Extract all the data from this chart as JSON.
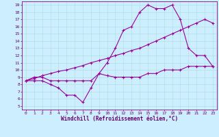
{
  "xlabel": "Windchill (Refroidissement éolien,°C)",
  "background_color": "#cceeff",
  "line_color": "#990099",
  "xlim": [
    -0.5,
    23.5
  ],
  "ylim": [
    4.5,
    19.5
  ],
  "yticks": [
    5,
    6,
    7,
    8,
    9,
    10,
    11,
    12,
    13,
    14,
    15,
    16,
    17,
    18,
    19
  ],
  "xticks": [
    0,
    1,
    2,
    3,
    4,
    5,
    6,
    7,
    8,
    9,
    10,
    11,
    12,
    13,
    14,
    15,
    16,
    17,
    18,
    19,
    20,
    21,
    22,
    23
  ],
  "line1_x": [
    0,
    1,
    2,
    3,
    4,
    5,
    6,
    7,
    8,
    9,
    10,
    11,
    12,
    13,
    14,
    15,
    16,
    17,
    18,
    19,
    20,
    21,
    22,
    23
  ],
  "line1_y": [
    8.5,
    9.0,
    9.0,
    8.5,
    8.5,
    8.5,
    8.5,
    8.5,
    8.5,
    9.5,
    11.0,
    13.0,
    15.5,
    16.0,
    18.0,
    19.0,
    18.5,
    18.5,
    19.0,
    17.0,
    13.0,
    12.0,
    12.0,
    10.5
  ],
  "line2_x": [
    0,
    1,
    2,
    3,
    4,
    5,
    6,
    7,
    8,
    9,
    10,
    11,
    12,
    13,
    14,
    15,
    16,
    17,
    18,
    19,
    20,
    21,
    22,
    23
  ],
  "line2_y": [
    8.5,
    8.8,
    9.2,
    9.5,
    9.8,
    10.0,
    10.3,
    10.6,
    11.0,
    11.3,
    11.6,
    12.0,
    12.3,
    12.7,
    13.0,
    13.5,
    14.0,
    14.5,
    15.0,
    15.5,
    16.0,
    16.5,
    17.0,
    16.5
  ],
  "line3_x": [
    0,
    1,
    2,
    3,
    4,
    5,
    6,
    7,
    8,
    9,
    10,
    11,
    12,
    13,
    14,
    15,
    16,
    17,
    18,
    19,
    20,
    21,
    22,
    23
  ],
  "line3_y": [
    8.5,
    8.5,
    8.5,
    8.0,
    7.5,
    6.5,
    6.5,
    5.5,
    7.5,
    9.5,
    9.2,
    9.0,
    9.0,
    9.0,
    9.0,
    9.5,
    9.5,
    10.0,
    10.0,
    10.0,
    10.5,
    10.5,
    10.5,
    10.5
  ],
  "grid_color": "#aadddd",
  "marker": "+",
  "marker_size": 3,
  "line_width": 0.8,
  "xlabel_fontsize": 5.5,
  "tick_fontsize": 4.5
}
